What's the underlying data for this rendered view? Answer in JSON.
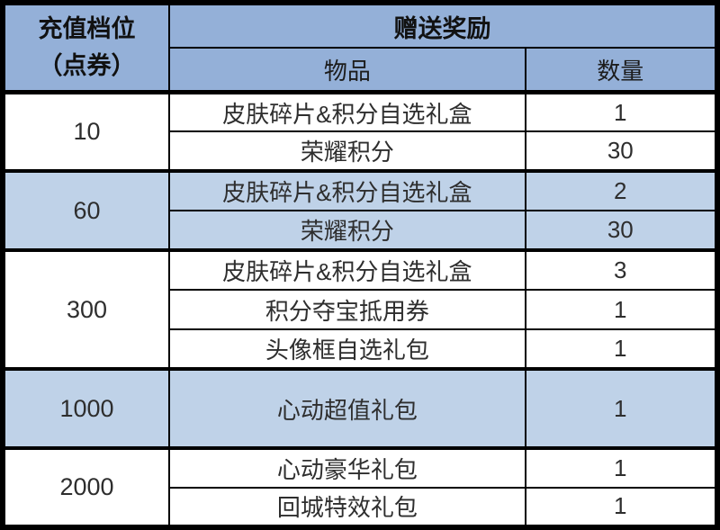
{
  "table": {
    "header": {
      "tier_label": "充值档位\n（点券）",
      "rewards_label": "赠送奖励",
      "item_label": "物品",
      "quantity_label": "数量"
    },
    "groups": [
      {
        "tier": "10",
        "highlighted": false,
        "rows": [
          {
            "item": "皮肤碎片&积分自选礼盒",
            "qty": "1"
          },
          {
            "item": "荣耀积分",
            "qty": "30"
          }
        ]
      },
      {
        "tier": "60",
        "highlighted": true,
        "rows": [
          {
            "item": "皮肤碎片&积分自选礼盒",
            "qty": "2"
          },
          {
            "item": "荣耀积分",
            "qty": "30"
          }
        ]
      },
      {
        "tier": "300",
        "highlighted": false,
        "rows": [
          {
            "item": "皮肤碎片&积分自选礼盒",
            "qty": "3"
          },
          {
            "item": "积分夺宝抵用券",
            "qty": "1"
          },
          {
            "item": "头像框自选礼包",
            "qty": "1"
          }
        ]
      },
      {
        "tier": "1000",
        "highlighted": true,
        "rows": [
          {
            "item": "心动超值礼包",
            "qty": "1"
          }
        ]
      },
      {
        "tier": "2000",
        "highlighted": false,
        "rows": [
          {
            "item": "心动豪华礼包",
            "qty": "1"
          },
          {
            "item": "回城特效礼包",
            "qty": "1"
          }
        ]
      }
    ],
    "colors": {
      "header_bg": "#94b0d8",
      "highlight_row_bg": "#bfd2e8",
      "border": "#000000",
      "header_text": "#111111",
      "body_text": "#2e2e2e"
    }
  },
  "chart_data": {
    "type": "table",
    "title": "充值档位赠送奖励",
    "columns": [
      "充值档位（点券）",
      "物品",
      "数量"
    ],
    "rows": [
      [
        "10",
        "皮肤碎片&积分自选礼盒",
        1
      ],
      [
        "10",
        "荣耀积分",
        30
      ],
      [
        "60",
        "皮肤碎片&积分自选礼盒",
        2
      ],
      [
        "60",
        "荣耀积分",
        30
      ],
      [
        "300",
        "皮肤碎片&积分自选礼盒",
        3
      ],
      [
        "300",
        "积分夺宝抵用券",
        1
      ],
      [
        "300",
        "头像框自选礼包",
        1
      ],
      [
        "1000",
        "心动超值礼包",
        1
      ],
      [
        "2000",
        "心动豪华礼包",
        1
      ],
      [
        "2000",
        "回城特效礼包",
        1
      ]
    ],
    "layout": {
      "header_merged": "赠送奖励 spans 物品+数量 columns",
      "grid": true,
      "highlighted_tiers": [
        "60",
        "1000"
      ]
    }
  }
}
